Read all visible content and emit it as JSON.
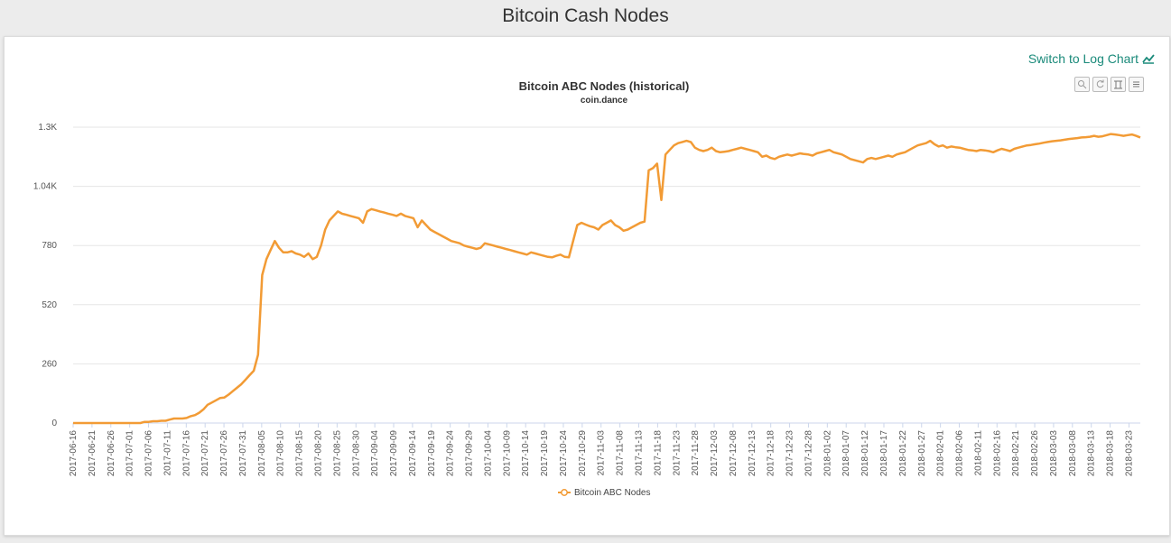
{
  "page": {
    "title": "Bitcoin Cash Nodes"
  },
  "controls": {
    "log_chart_label": "Switch to Log Chart",
    "log_chart_icon": "line-chart-icon",
    "toolbar_icons": [
      "zoom-icon",
      "reset-icon",
      "data-view-icon",
      "restore-icon"
    ]
  },
  "colors": {
    "series": "#f29b35",
    "link": "#1a8a7a"
  },
  "chart_data": {
    "type": "line",
    "title": "Bitcoin ABC Nodes (historical)",
    "subtitle": "coin.dance",
    "legend": "bottom-center",
    "grid": true,
    "y_ticks": [
      "0",
      "260",
      "520",
      "780",
      "1.04K",
      "1.3K"
    ],
    "ylim": [
      0,
      1300
    ],
    "x_labels": [
      "2017-06-16",
      "2017-06-21",
      "2017-06-26",
      "2017-07-01",
      "2017-07-06",
      "2017-07-11",
      "2017-07-16",
      "2017-07-21",
      "2017-07-26",
      "2017-07-31",
      "2017-08-05",
      "2017-08-10",
      "2017-08-15",
      "2017-08-20",
      "2017-08-25",
      "2017-08-30",
      "2017-09-04",
      "2017-09-09",
      "2017-09-14",
      "2017-09-19",
      "2017-09-24",
      "2017-09-29",
      "2017-10-04",
      "2017-10-09",
      "2017-10-14",
      "2017-10-19",
      "2017-10-24",
      "2017-10-29",
      "2017-11-03",
      "2017-11-08",
      "2017-11-13",
      "2017-11-18",
      "2017-11-23",
      "2017-11-28",
      "2017-12-03",
      "2017-12-08",
      "2017-12-13",
      "2017-12-18",
      "2017-12-23",
      "2017-12-28",
      "2018-01-02",
      "2018-01-07",
      "2018-01-12",
      "2018-01-17",
      "2018-01-22",
      "2018-01-27",
      "2018-02-01",
      "2018-02-06",
      "2018-02-11",
      "2018-02-16",
      "2018-02-21",
      "2018-02-26",
      "2018-03-03",
      "2018-03-08",
      "2018-03-13",
      "2018-03-18",
      "2018-03-23"
    ],
    "series": [
      {
        "name": "Bitcoin ABC Nodes",
        "values": [
          0,
          0,
          0,
          0,
          0,
          0,
          0,
          0,
          0,
          0,
          0,
          0,
          0,
          0,
          0,
          0,
          0,
          5,
          5,
          8,
          8,
          10,
          10,
          15,
          20,
          20,
          20,
          22,
          30,
          35,
          45,
          60,
          80,
          90,
          100,
          110,
          112,
          125,
          140,
          155,
          170,
          190,
          210,
          230,
          300,
          650,
          720,
          760,
          800,
          770,
          750,
          750,
          755,
          745,
          740,
          730,
          745,
          720,
          730,
          780,
          850,
          890,
          910,
          930,
          920,
          915,
          910,
          905,
          900,
          880,
          930,
          940,
          935,
          930,
          925,
          920,
          915,
          910,
          920,
          910,
          905,
          900,
          860,
          890,
          870,
          850,
          840,
          830,
          820,
          810,
          800,
          795,
          790,
          780,
          775,
          770,
          765,
          770,
          790,
          785,
          780,
          775,
          770,
          765,
          760,
          755,
          750,
          745,
          740,
          750,
          745,
          740,
          735,
          730,
          728,
          735,
          740,
          730,
          728,
          800,
          870,
          880,
          872,
          865,
          860,
          850,
          870,
          880,
          890,
          870,
          860,
          845,
          850,
          860,
          870,
          880,
          885,
          1110,
          1120,
          1140,
          980,
          1180,
          1200,
          1220,
          1230,
          1235,
          1240,
          1235,
          1210,
          1200,
          1195,
          1200,
          1210,
          1195,
          1190,
          1192,
          1195,
          1200,
          1205,
          1210,
          1205,
          1200,
          1195,
          1190,
          1170,
          1175,
          1165,
          1160,
          1170,
          1175,
          1180,
          1175,
          1180,
          1185,
          1182,
          1180,
          1175,
          1185,
          1190,
          1195,
          1200,
          1190,
          1185,
          1180,
          1170,
          1160,
          1155,
          1150,
          1145,
          1160,
          1165,
          1160,
          1165,
          1170,
          1175,
          1170,
          1180,
          1185,
          1190,
          1200,
          1210,
          1220,
          1225,
          1230,
          1240,
          1225,
          1215,
          1220,
          1210,
          1215,
          1212,
          1210,
          1205,
          1200,
          1198,
          1195,
          1200,
          1198,
          1195,
          1190,
          1198,
          1205,
          1200,
          1195,
          1205,
          1210,
          1215,
          1220,
          1222,
          1225,
          1228,
          1232,
          1235,
          1238,
          1240,
          1242,
          1245,
          1248,
          1250,
          1252,
          1255,
          1256,
          1258,
          1262,
          1258,
          1260,
          1265,
          1270,
          1268,
          1265,
          1262,
          1265,
          1268,
          1262,
          1255
        ]
      }
    ]
  }
}
